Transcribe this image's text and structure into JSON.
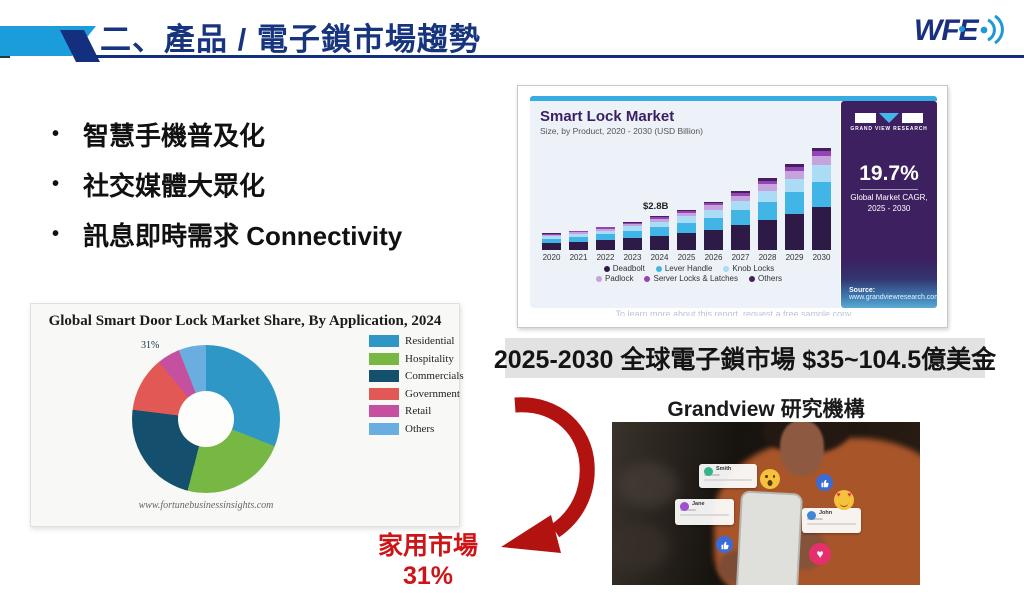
{
  "header": {
    "title": "二、產品 / 電子鎖市場趨勢",
    "logo_text": "WFE"
  },
  "bullets": [
    "智慧手機普及化",
    "社交媒體大眾化",
    "訊息即時需求 Connectivity"
  ],
  "chart_data": [
    {
      "type": "bar",
      "stacked": true,
      "title": "Smart Lock Market",
      "subtitle": "Size, by Product, 2020 - 2030 (USD Billion)",
      "categories": [
        "2020",
        "2021",
        "2022",
        "2023",
        "2024",
        "2025",
        "2026",
        "2027",
        "2028",
        "2029",
        "2030"
      ],
      "series": [
        {
          "name": "Deadbolt",
          "color": "#2e1a47",
          "values": [
            0.6,
            0.7,
            0.8,
            1.0,
            1.2,
            1.4,
            1.7,
            2.1,
            2.5,
            3.0,
            3.6
          ]
        },
        {
          "name": "Lever Handle",
          "color": "#41b6e6",
          "values": [
            0.35,
            0.4,
            0.5,
            0.6,
            0.7,
            0.85,
            1.0,
            1.2,
            1.5,
            1.8,
            2.1
          ]
        },
        {
          "name": "Knob Locks",
          "color": "#aadcf5",
          "values": [
            0.2,
            0.25,
            0.3,
            0.37,
            0.45,
            0.55,
            0.65,
            0.8,
            0.95,
            1.15,
            1.35
          ]
        },
        {
          "name": "Padlock",
          "color": "#c7a3dd",
          "values": [
            0.13,
            0.14,
            0.18,
            0.21,
            0.25,
            0.3,
            0.37,
            0.44,
            0.53,
            0.64,
            0.77
          ]
        },
        {
          "name": "Server Locks & Latches",
          "color": "#9345b8",
          "values": [
            0.07,
            0.08,
            0.1,
            0.12,
            0.14,
            0.17,
            0.21,
            0.25,
            0.3,
            0.36,
            0.43
          ]
        },
        {
          "name": "Others",
          "color": "#45215c",
          "values": [
            0.04,
            0.05,
            0.06,
            0.07,
            0.08,
            0.1,
            0.12,
            0.15,
            0.18,
            0.21,
            0.26
          ]
        }
      ],
      "annotation": {
        "category": "2024",
        "text": "$2.8B"
      },
      "ylim": [
        0,
        9
      ],
      "legend_position": "bottom",
      "footer_note": "To learn more about this report, request a free sample copy",
      "panel": {
        "brand": "GRAND VIEW RESEARCH",
        "cagr_value": "19.7%",
        "cagr_label1": "Global Market CAGR,",
        "cagr_label2": "2025 - 2030",
        "source_word": "Source:",
        "source_url": "www.grandviewresearch.com"
      }
    },
    {
      "type": "pie",
      "subtype": "donut",
      "title": "Global Smart Door Lock Market Share, By Application, 2024",
      "labels": [
        "Residential",
        "Hospitality",
        "Commercials",
        "Government",
        "Retail",
        "Others"
      ],
      "values": [
        31,
        23,
        23,
        12,
        5,
        6
      ],
      "colors": [
        "#2e97c5",
        "#76b843",
        "#14506e",
        "#e25855",
        "#c4509f",
        "#69aede"
      ],
      "center_label": "31%",
      "legend_position": "right",
      "watermark": "www.fortunebusinessinsights.com"
    }
  ],
  "market_note": "2025-2030 全球電子鎖市場 $35~104.5億美金",
  "grandview_caption": "Grandview 研究機構",
  "home_market": {
    "line1": "家用市場",
    "line2": "31%"
  },
  "photo": {
    "cards": [
      {
        "name": "Smith"
      },
      {
        "name": "Jane"
      },
      {
        "name": "John"
      }
    ]
  },
  "colors": {
    "title_navy": "#17357e",
    "accent_light_blue": "#1b9cdb",
    "arrow_red": "#b21311",
    "home_market_red": "#cf1417",
    "note_band_gray": "#e2e2e2",
    "gvr_purple": "#3c2060",
    "gvr_strip_blue": "#36ace2"
  }
}
